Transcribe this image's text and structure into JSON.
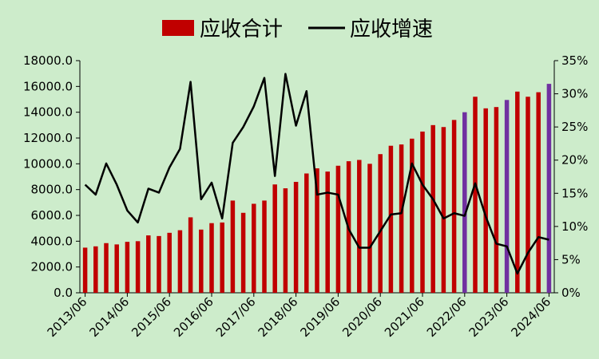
{
  "chart_data": {
    "type": "bar+line",
    "title": "",
    "legend": {
      "placement": "top",
      "entries": [
        {
          "name": "应收合计",
          "kind": "bar",
          "color": "#c00000"
        },
        {
          "name": "应收增速",
          "kind": "line",
          "color": "#000000"
        }
      ]
    },
    "axes": {
      "y_left": {
        "min": 0,
        "max": 18000,
        "step": 2000,
        "tick_labels": [
          "0.0",
          "2000.0",
          "4000.0",
          "6000.0",
          "8000.0",
          "10000.0",
          "12000.0",
          "14000.0",
          "16000.0",
          "18000.0"
        ]
      },
      "y_right": {
        "min": 0,
        "max": 35,
        "step": 5,
        "tick_labels": [
          "0%",
          "5%",
          "10%",
          "15%",
          "20%",
          "25%",
          "30%",
          "35%"
        ]
      },
      "x_tick_labels": [
        "2013/06",
        "2014/06",
        "2015/06",
        "2016/06",
        "2017/06",
        "2018/06",
        "2019/06",
        "2020/06",
        "2021/06",
        "2022/06",
        "2023/06",
        "2024/06"
      ]
    },
    "grid": false,
    "periods": [
      "2013/06",
      "2013/09",
      "2013/12",
      "2014/03",
      "2014/06",
      "2014/09",
      "2014/12",
      "2015/03",
      "2015/06",
      "2015/09",
      "2015/12",
      "2016/03",
      "2016/06",
      "2016/09",
      "2016/12",
      "2017/03",
      "2017/06",
      "2017/09",
      "2017/12",
      "2018/03",
      "2018/06",
      "2018/09",
      "2018/12",
      "2019/03",
      "2019/06",
      "2019/09",
      "2019/12",
      "2020/03",
      "2020/06",
      "2020/09",
      "2020/12",
      "2021/03",
      "2021/06",
      "2021/09",
      "2021/12",
      "2022/03",
      "2022/06",
      "2022/09",
      "2022/12",
      "2023/03",
      "2023/06",
      "2023/09",
      "2023/12",
      "2024/03",
      "2024/06"
    ],
    "series": [
      {
        "name": "应收合计",
        "type": "bar",
        "axis": "left",
        "color": "#c00000",
        "highlight_color": "#7030a0",
        "highlight_periods": [
          "2022/06",
          "2023/06",
          "2024/06"
        ],
        "values": [
          3500,
          3600,
          3850,
          3750,
          3950,
          4000,
          4450,
          4400,
          4650,
          4850,
          5850,
          4900,
          5400,
          5450,
          7150,
          6200,
          6900,
          7150,
          8400,
          8100,
          8600,
          9250,
          9650,
          9400,
          9850,
          10200,
          10300,
          10000,
          10750,
          11400,
          11500,
          11950,
          12500,
          13000,
          12850,
          13400,
          14000,
          15200,
          14300,
          14400,
          14950,
          15600,
          15200,
          15550,
          16200
        ]
      },
      {
        "name": "应收增速",
        "type": "line",
        "axis": "right",
        "color": "#000000",
        "values": [
          16.3,
          14.8,
          19.5,
          16.3,
          12.4,
          10.6,
          15.7,
          15.1,
          18.9,
          21.7,
          31.8,
          14.1,
          16.6,
          11.2,
          22.6,
          25.0,
          28.1,
          32.4,
          17.6,
          33.0,
          25.2,
          30.4,
          14.8,
          15.1,
          14.8,
          9.6,
          6.8,
          6.8,
          9.3,
          11.8,
          12.0,
          19.5,
          16.3,
          14.1,
          11.2,
          12.0,
          11.6,
          16.5,
          11.5,
          7.4,
          7.0,
          2.9,
          6.0,
          8.4,
          8.0
        ]
      }
    ]
  }
}
